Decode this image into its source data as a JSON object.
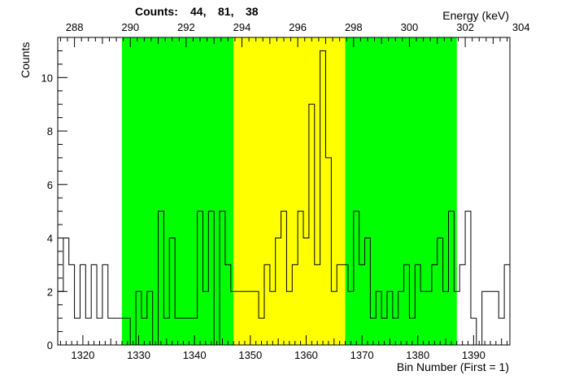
{
  "chart_data": {
    "type": "bar",
    "style": "step-histogram",
    "counts_label": "Counts:",
    "counts_values": [
      "44,",
      "81,",
      "38"
    ],
    "xlabel": "Bin Number (First = 1)",
    "ylabel": "Counts",
    "x2label": "Energy (keV)",
    "xlim": [
      1315.5,
      1396.5
    ],
    "ylim": [
      0,
      11.5
    ],
    "x_ticks": [
      "1320",
      "1330",
      "1340",
      "1350",
      "1360",
      "1370",
      "1380",
      "1390"
    ],
    "y_ticks": [
      "0",
      "2",
      "4",
      "6",
      "8",
      "10"
    ],
    "x2_ticks": [
      "288",
      "290",
      "292",
      "294",
      "296",
      "298",
      "300",
      "302",
      "304"
    ],
    "energy_axis": {
      "keV_at_bin_1320": 288.3,
      "keV_per_bin": 0.2
    },
    "regions": [
      {
        "from_bin": 1327,
        "to_bin": 1347,
        "color": "#00ff00"
      },
      {
        "from_bin": 1347,
        "to_bin": 1367,
        "color": "#ffff00"
      },
      {
        "from_bin": 1367,
        "to_bin": 1387,
        "color": "#00ff00"
      }
    ],
    "first_bin": 1316,
    "values": [
      2,
      4,
      3,
      1,
      3,
      1,
      3,
      1,
      3,
      1,
      1,
      1,
      1,
      0,
      2,
      1,
      2,
      0,
      5,
      1,
      4,
      1,
      1,
      1,
      1,
      5,
      2,
      5,
      0,
      5,
      3,
      2,
      2,
      2,
      2,
      2,
      1,
      3,
      2,
      4,
      5,
      2,
      3,
      5,
      4,
      9,
      3,
      11,
      7,
      2,
      3,
      3,
      2,
      5,
      3,
      4,
      1,
      2,
      1,
      2,
      1,
      2,
      3,
      1,
      3,
      2,
      2,
      3,
      4,
      2,
      5,
      2,
      3,
      5,
      1,
      0,
      2,
      2,
      2,
      1,
      3
    ],
    "colors": {
      "line": "#000000",
      "frame": "#000000",
      "background": "#ffffff"
    }
  }
}
